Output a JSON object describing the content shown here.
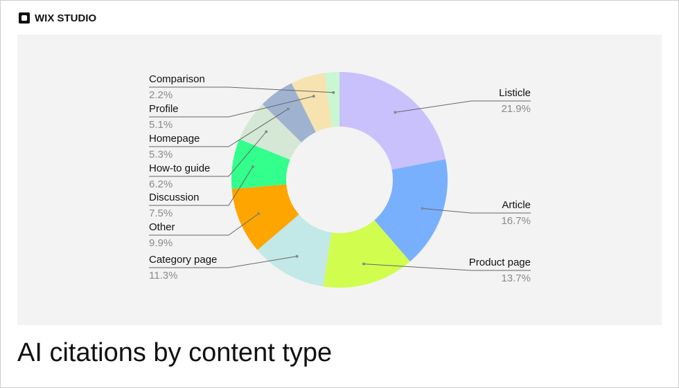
{
  "brand": "WIX STUDIO",
  "chart_data": {
    "type": "donut",
    "title": "AI citations by content type",
    "categories": [
      "Listicle",
      "Article",
      "Product page",
      "Category page",
      "Other",
      "Discussion",
      "How-to guide",
      "Homepage",
      "Profile",
      "Comparison"
    ],
    "values": [
      21.9,
      16.7,
      13.7,
      11.3,
      9.9,
      7.5,
      6.2,
      5.3,
      5.1,
      2.2
    ],
    "value_labels": [
      "21.9%",
      "16.7%",
      "13.7%",
      "11.3%",
      "9.9%",
      "7.5%",
      "6.2%",
      "5.3%",
      "5.1%",
      "2.2%"
    ],
    "colors": [
      "#c9c1fb",
      "#78b0fd",
      "#d1fd4f",
      "#c3e8e8",
      "#ffa500",
      "#33ff8c",
      "#d5e8d5",
      "#9fb3d1",
      "#f6e3b0",
      "#c8f7d2"
    ]
  }
}
